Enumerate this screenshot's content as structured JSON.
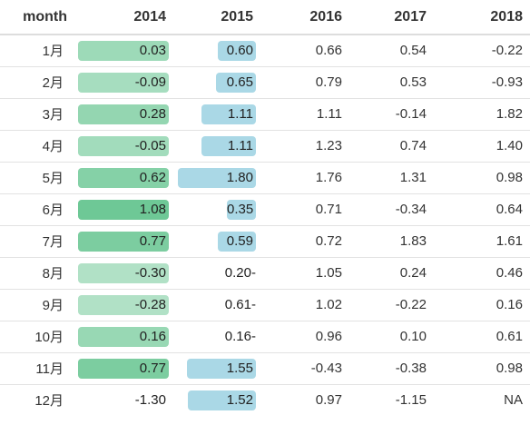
{
  "columns": [
    "month",
    "2014",
    "2015",
    "2016",
    "2017",
    "2018"
  ],
  "colors": {
    "green_bar": "#7fcf9f",
    "blue_bar": "#aad8e6"
  },
  "rows": [
    {
      "month": "1月",
      "v2014": "0.03",
      "g2014": 0.5,
      "v2015": "0.60",
      "b2015": 0.22,
      "v2016": "0.66",
      "v2017": "0.54",
      "v2018": "-0.22"
    },
    {
      "month": "2月",
      "v2014": "-0.09",
      "g2014": 0.4,
      "v2015": "0.65",
      "b2015": 0.24,
      "v2016": "0.79",
      "v2017": "0.53",
      "v2018": "-0.93"
    },
    {
      "month": "3月",
      "v2014": "0.28",
      "g2014": 0.6,
      "v2015": "1.11",
      "b2015": 0.41,
      "v2016": "1.11",
      "v2017": "-0.14",
      "v2018": "1.82"
    },
    {
      "month": "4月",
      "v2014": "-0.05",
      "g2014": 0.45,
      "v2015": "1.11",
      "b2015": 0.41,
      "v2016": "1.23",
      "v2017": "0.74",
      "v2018": "1.40"
    },
    {
      "month": "5月",
      "v2014": "0.62",
      "g2014": 0.75,
      "v2015": "1.80",
      "b2015": 0.66,
      "v2016": "1.76",
      "v2017": "1.31",
      "v2018": "0.98"
    },
    {
      "month": "6月",
      "v2014": "1.08",
      "g2014": 1.0,
      "v2015": "0.35",
      "b2015": 0.13,
      "v2016": "0.71",
      "v2017": "-0.34",
      "v2018": "0.64"
    },
    {
      "month": "7月",
      "v2014": "0.77",
      "g2014": 0.85,
      "v2015": "0.59",
      "b2015": 0.22,
      "v2016": "0.72",
      "v2017": "1.83",
      "v2018": "1.61"
    },
    {
      "month": "8月",
      "v2014": "-0.30",
      "g2014": 0.3,
      "v2015": "0.20-",
      "b2015": 0.0,
      "v2016": "1.05",
      "v2017": "0.24",
      "v2018": "0.46"
    },
    {
      "month": "9月",
      "v2014": "-0.28",
      "g2014": 0.3,
      "v2015": "0.61-",
      "b2015": 0.0,
      "v2016": "1.02",
      "v2017": "-0.22",
      "v2018": "0.16"
    },
    {
      "month": "10月",
      "v2014": "0.16",
      "g2014": 0.55,
      "v2015": "0.16-",
      "b2015": 0.0,
      "v2016": "0.96",
      "v2017": "0.10",
      "v2018": "0.61"
    },
    {
      "month": "11月",
      "v2014": "0.77",
      "g2014": 0.85,
      "v2015": "1.55",
      "b2015": 0.57,
      "v2016": "-0.43",
      "v2017": "-0.38",
      "v2018": "0.98"
    },
    {
      "month": "12月",
      "v2014": "-1.30",
      "g2014": 0.0,
      "v2015": "1.52",
      "b2015": 0.56,
      "v2016": "0.97",
      "v2017": "-1.15",
      "v2018": "NA"
    }
  ]
}
